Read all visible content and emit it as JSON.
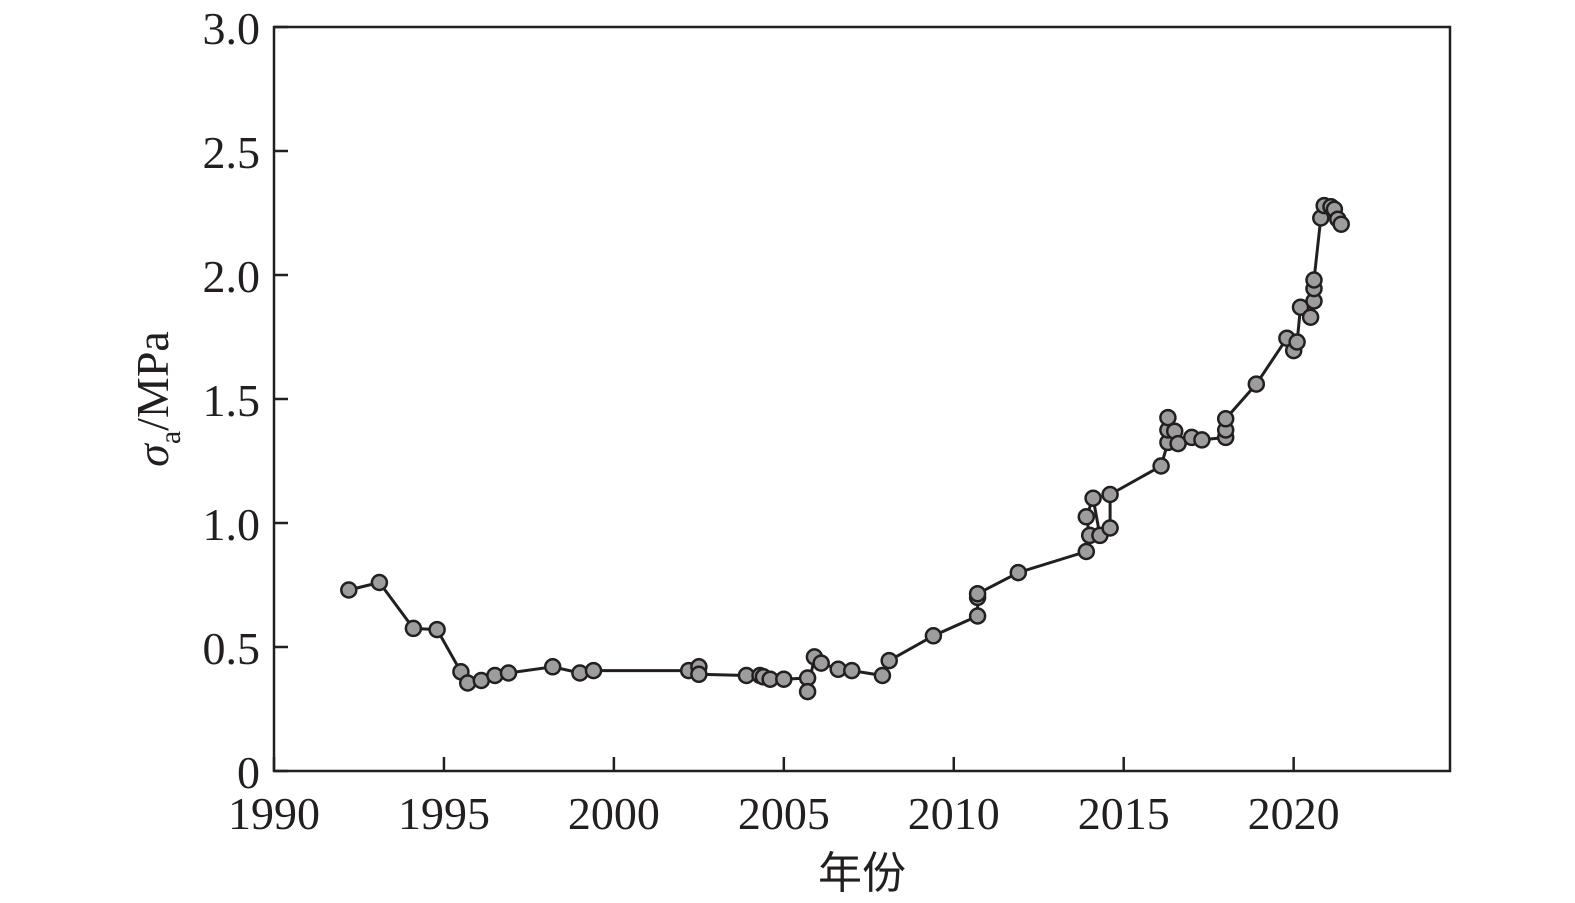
{
  "chart_data": {
    "type": "scatter",
    "title": "",
    "xlabel": "年份",
    "ylabel": {
      "symbol": "σ",
      "subscript": "a",
      "unit": "/MPa"
    },
    "xlim": [
      1990,
      2024.6
    ],
    "ylim": [
      0,
      3.0
    ],
    "x_ticks": [
      1990,
      1995,
      2000,
      2005,
      2010,
      2015,
      2020
    ],
    "y_ticks": [
      {
        "value": 0,
        "label": "0"
      },
      {
        "value": 0.5,
        "label": "0.5"
      },
      {
        "value": 1.0,
        "label": "1.0"
      },
      {
        "value": 1.5,
        "label": "1.5"
      },
      {
        "value": 2.0,
        "label": "2.0"
      },
      {
        "value": 2.5,
        "label": "2.5"
      },
      {
        "value": 3.0,
        "label": "3.0"
      }
    ],
    "grid": false,
    "legend": "none",
    "marker_fill": "#9d9d9d",
    "line_color": "#231f20",
    "points": [
      [
        1992.2,
        0.73
      ],
      [
        1993.1,
        0.76
      ],
      [
        1994.1,
        0.575
      ],
      [
        1994.8,
        0.57
      ],
      [
        1995.5,
        0.4
      ],
      [
        1995.7,
        0.355
      ],
      [
        1996.1,
        0.365
      ],
      [
        1996.5,
        0.385
      ],
      [
        1996.9,
        0.395
      ],
      [
        1998.2,
        0.42
      ],
      [
        1999.0,
        0.395
      ],
      [
        1999.4,
        0.405
      ],
      [
        2002.2,
        0.405
      ],
      [
        2002.5,
        0.42
      ],
      [
        2002.5,
        0.39
      ],
      [
        2003.9,
        0.385
      ],
      [
        2004.3,
        0.385
      ],
      [
        2004.4,
        0.38
      ],
      [
        2004.6,
        0.37
      ],
      [
        2005.0,
        0.37
      ],
      [
        2005.7,
        0.375
      ],
      [
        2005.7,
        0.32
      ],
      [
        2005.9,
        0.46
      ],
      [
        2006.1,
        0.435
      ],
      [
        2006.6,
        0.41
      ],
      [
        2007.0,
        0.405
      ],
      [
        2007.9,
        0.385
      ],
      [
        2008.1,
        0.445
      ],
      [
        2009.4,
        0.545
      ],
      [
        2010.7,
        0.625
      ],
      [
        2010.7,
        0.7
      ],
      [
        2010.7,
        0.715
      ],
      [
        2011.9,
        0.8
      ],
      [
        2013.9,
        0.885
      ],
      [
        2014.0,
        0.95
      ],
      [
        2013.9,
        1.025
      ],
      [
        2014.1,
        1.1
      ],
      [
        2014.3,
        0.95
      ],
      [
        2014.6,
        0.98
      ],
      [
        2014.6,
        1.115
      ],
      [
        2016.1,
        1.23
      ],
      [
        2016.3,
        1.325
      ],
      [
        2016.3,
        1.375
      ],
      [
        2016.3,
        1.425
      ],
      [
        2016.5,
        1.37
      ],
      [
        2016.6,
        1.32
      ],
      [
        2017.0,
        1.345
      ],
      [
        2017.3,
        1.335
      ],
      [
        2018.0,
        1.345
      ],
      [
        2018.0,
        1.375
      ],
      [
        2018.0,
        1.42
      ],
      [
        2018.9,
        1.56
      ],
      [
        2019.8,
        1.745
      ],
      [
        2020.0,
        1.695
      ],
      [
        2020.1,
        1.73
      ],
      [
        2020.2,
        1.87
      ],
      [
        2020.5,
        1.83
      ],
      [
        2020.6,
        1.895
      ],
      [
        2020.6,
        1.945
      ],
      [
        2020.6,
        1.98
      ],
      [
        2020.8,
        2.23
      ],
      [
        2020.9,
        2.28
      ],
      [
        2021.1,
        2.275
      ],
      [
        2021.2,
        2.265
      ],
      [
        2021.3,
        2.225
      ],
      [
        2021.4,
        2.205
      ]
    ]
  }
}
